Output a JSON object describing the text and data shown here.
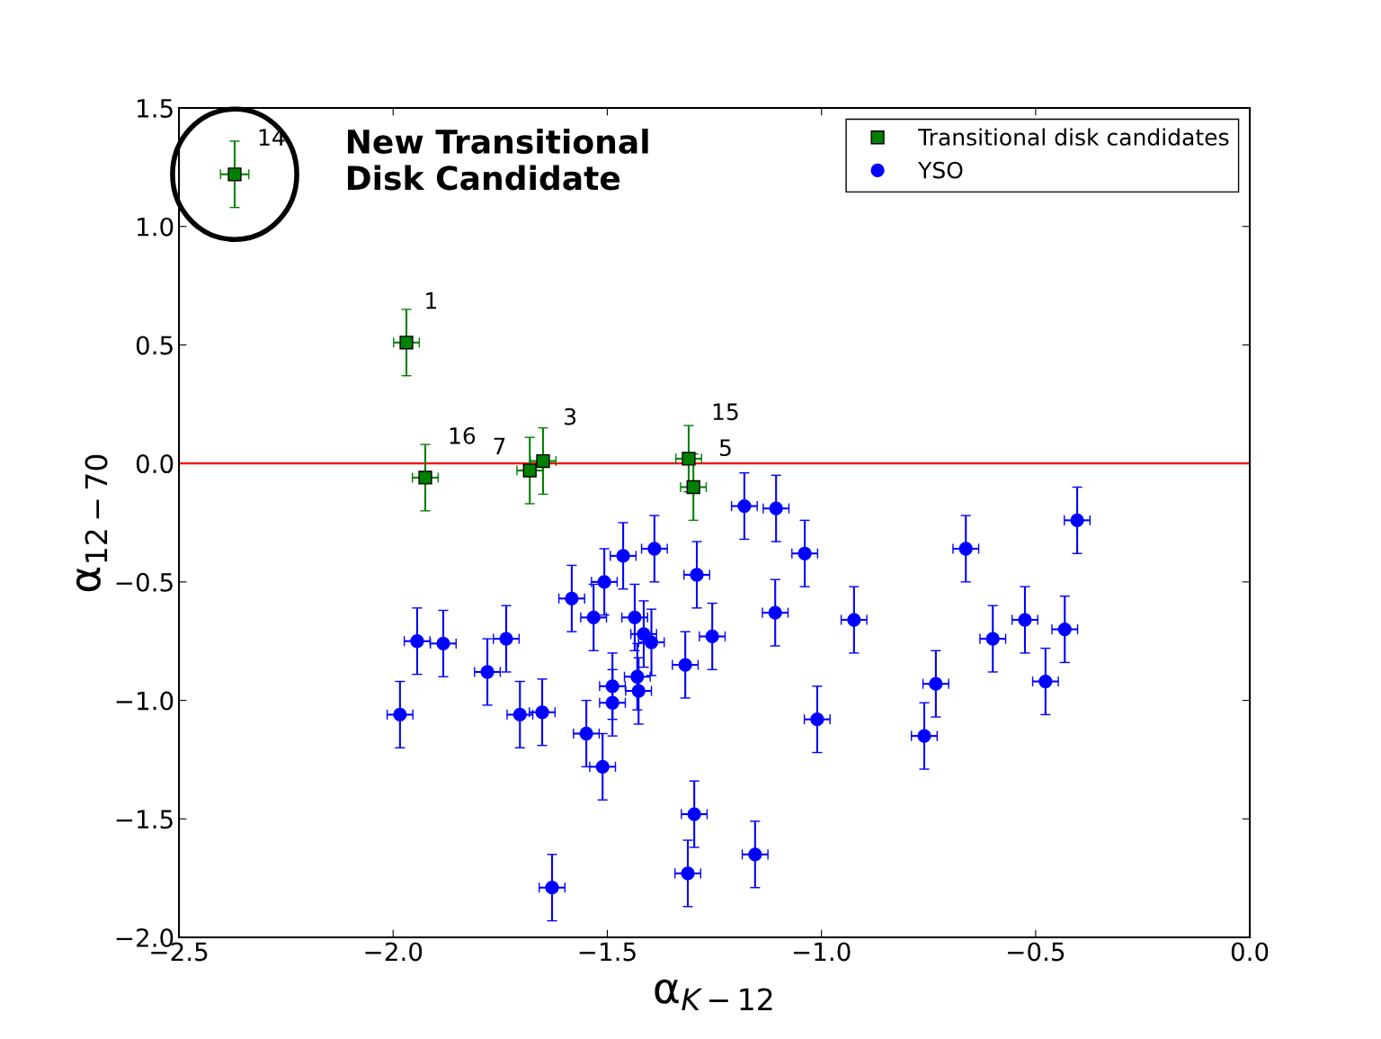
{
  "chart_data": {
    "type": "scatter",
    "xlabel": "α$_{K−12}$",
    "ylabel": "α$_{12−70}$",
    "xlim": [
      -2.5,
      0.0
    ],
    "ylim": [
      -2.0,
      1.5
    ],
    "xticks": [
      {
        "value": -2.5,
        "label": "−2.5"
      },
      {
        "value": -2.0,
        "label": "−2.0"
      },
      {
        "value": -1.5,
        "label": "−1.5"
      },
      {
        "value": -1.0,
        "label": "−1.0"
      },
      {
        "value": -0.5,
        "label": "−0.5"
      },
      {
        "value": 0.0,
        "label": "0.0"
      }
    ],
    "yticks": [
      {
        "value": -2.0,
        "label": "−2.0"
      },
      {
        "value": -1.5,
        "label": "−1.5"
      },
      {
        "value": -1.0,
        "label": "−1.0"
      },
      {
        "value": -0.5,
        "label": "−0.5"
      },
      {
        "value": 0.0,
        "label": "0.0"
      },
      {
        "value": 0.5,
        "label": "0.5"
      },
      {
        "value": 1.0,
        "label": "1.0"
      },
      {
        "value": 1.5,
        "label": "1.5"
      }
    ],
    "grid": false,
    "legend": "top right",
    "ref_lines": [
      {
        "axis": "y",
        "value": 0.0,
        "color": "#ff0000",
        "line_style": "solid"
      }
    ],
    "series": [
      {
        "name": "Transitional disk candidates",
        "color": "#008000",
        "marker": "square",
        "x": [
          -2.37,
          -1.969,
          -1.925,
          -1.681,
          -1.65,
          -1.31,
          -1.299
        ],
        "values": [
          1.22,
          0.51,
          -0.06,
          -0.03,
          0.01,
          0.02,
          -0.1
        ],
        "errors": [
          0.14,
          0.14,
          0.14,
          0.14,
          0.14,
          0.14,
          0.14
        ],
        "xerrors": [
          0.033,
          0.03,
          0.03,
          0.03,
          0.03,
          0.03,
          0.03
        ]
      },
      {
        "name": "YSO",
        "color": "#0000ff",
        "marker": "circle",
        "x": [
          -1.984,
          -1.944,
          -1.883,
          -1.78,
          -1.736,
          -1.704,
          -1.652,
          -1.629,
          -1.583,
          -1.549,
          -1.532,
          -1.511,
          -1.507,
          -1.488,
          -1.488,
          -1.463,
          -1.436,
          -1.43,
          -1.427,
          -1.415,
          -1.397,
          -1.39,
          -1.318,
          -1.312,
          -1.297,
          -1.291,
          -1.255,
          -1.18,
          -1.155,
          -1.108,
          -1.106,
          -1.039,
          -1.01,
          -0.924,
          -0.76,
          -0.733,
          -0.663,
          -0.6,
          -0.525,
          -0.477,
          -0.432,
          -0.403
        ],
        "values": [
          -1.06,
          -0.75,
          -0.76,
          -0.88,
          -0.74,
          -1.06,
          -1.05,
          -1.79,
          -0.57,
          -1.14,
          -0.65,
          -1.28,
          -0.5,
          -0.94,
          -1.01,
          -0.39,
          -0.65,
          -0.9,
          -0.96,
          -0.72,
          -0.755,
          -0.36,
          -0.85,
          -1.73,
          -1.48,
          -0.47,
          -0.73,
          -0.18,
          -1.65,
          -0.63,
          -0.19,
          -0.38,
          -1.08,
          -0.66,
          -1.15,
          -0.93,
          -0.36,
          -0.74,
          -0.66,
          -0.92,
          -0.7,
          -0.24
        ],
        "errors": [
          0.14,
          0.14,
          0.14,
          0.14,
          0.14,
          0.14,
          0.14,
          0.14,
          0.14,
          0.14,
          0.14,
          0.14,
          0.14,
          0.14,
          0.14,
          0.14,
          0.14,
          0.14,
          0.14,
          0.14,
          0.14,
          0.14,
          0.14,
          0.14,
          0.14,
          0.14,
          0.14,
          0.14,
          0.14,
          0.14,
          0.14,
          0.14,
          0.14,
          0.14,
          0.14,
          0.14,
          0.14,
          0.14,
          0.14,
          0.14,
          0.14,
          0.14
        ],
        "xerrors": [
          0.03,
          0.03,
          0.03,
          0.03,
          0.03,
          0.03,
          0.03,
          0.03,
          0.03,
          0.03,
          0.03,
          0.03,
          0.03,
          0.03,
          0.03,
          0.03,
          0.03,
          0.03,
          0.03,
          0.03,
          0.03,
          0.03,
          0.03,
          0.03,
          0.03,
          0.03,
          0.03,
          0.03,
          0.03,
          0.03,
          0.03,
          0.03,
          0.03,
          0.03,
          0.03,
          0.03,
          0.03,
          0.03,
          0.03,
          0.03,
          0.03,
          0.03
        ]
      }
    ],
    "annotations": [
      {
        "text": "14",
        "x": -2.37,
        "y": 1.22
      },
      {
        "text": "1",
        "x": -1.969,
        "y": 0.51
      },
      {
        "text": "16",
        "x": -1.925,
        "y": -0.06
      },
      {
        "text": "7",
        "x": -1.681,
        "y": -0.03
      },
      {
        "text": "3",
        "x": -1.65,
        "y": 0.01
      },
      {
        "text": "15",
        "x": -1.31,
        "y": 0.02
      },
      {
        "text": "5",
        "x": -1.299,
        "y": -0.1
      },
      "New Transitional\nDisk Candidate"
    ]
  }
}
